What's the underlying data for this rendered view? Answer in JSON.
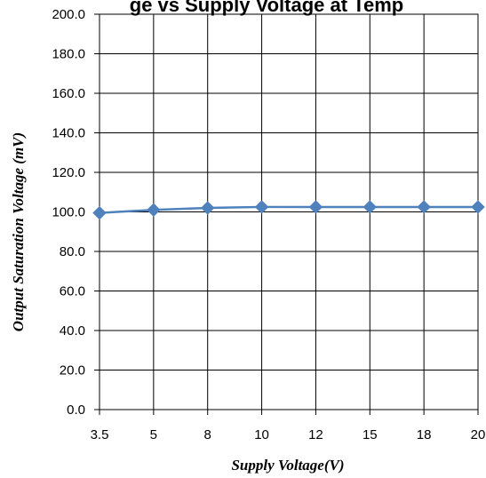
{
  "chart_data": {
    "type": "line",
    "title": "ge vs Supply Voltage at Temp",
    "xlabel": "Supply Voltage(V)",
    "ylabel": "Output Saturation Voltage (mV)",
    "categories": [
      "3.5",
      "5",
      "8",
      "10",
      "12",
      "15",
      "18",
      "20"
    ],
    "series": [
      {
        "values": [
          99.5,
          101.0,
          102.0,
          102.5,
          102.5,
          102.5,
          102.5,
          102.5
        ],
        "color": "#4f81bd"
      }
    ],
    "ylim": [
      0,
      200
    ],
    "yticks": [
      "0.0",
      "20.0",
      "40.0",
      "60.0",
      "80.0",
      "100.0",
      "120.0",
      "140.0",
      "160.0",
      "180.0",
      "200.0"
    ],
    "grid": true,
    "legend": "none"
  }
}
